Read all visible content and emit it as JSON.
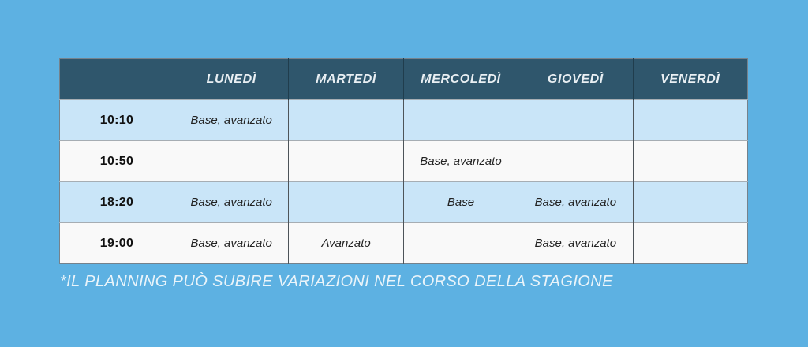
{
  "colors": {
    "bg": "#5DB1E2",
    "header-bg": "#2F566C",
    "header-text": "#E9EFF3",
    "row-alt": "#C9E5F8",
    "row-plain": "#F9F9F9",
    "cell-text": "#222222",
    "time-text": "#111111",
    "footnote-text": "#EAF4FA"
  },
  "table": {
    "header": {
      "time_column_label": "",
      "days": [
        "LUNEDÌ",
        "MARTEDÌ",
        "MERCOLEDÌ",
        "GIOVEDÌ",
        "VENERDÌ"
      ]
    },
    "rows": [
      {
        "time": "10:10",
        "cells": [
          "Base, avanzato",
          "",
          "",
          "",
          ""
        ]
      },
      {
        "time": "10:50",
        "cells": [
          "",
          "",
          "Base, avanzato",
          "",
          ""
        ]
      },
      {
        "time": "18:20",
        "cells": [
          "Base, avanzato",
          "",
          "Base",
          "Base, avanzato",
          ""
        ]
      },
      {
        "time": "19:00",
        "cells": [
          "Base, avanzato",
          "Avanzato",
          "",
          "Base, avanzato",
          ""
        ]
      }
    ]
  },
  "footnote": {
    "text": "*IL PLANNING PUÒ SUBIRE VARIAZIONI NEL CORSO DELLA STAGIONE"
  }
}
